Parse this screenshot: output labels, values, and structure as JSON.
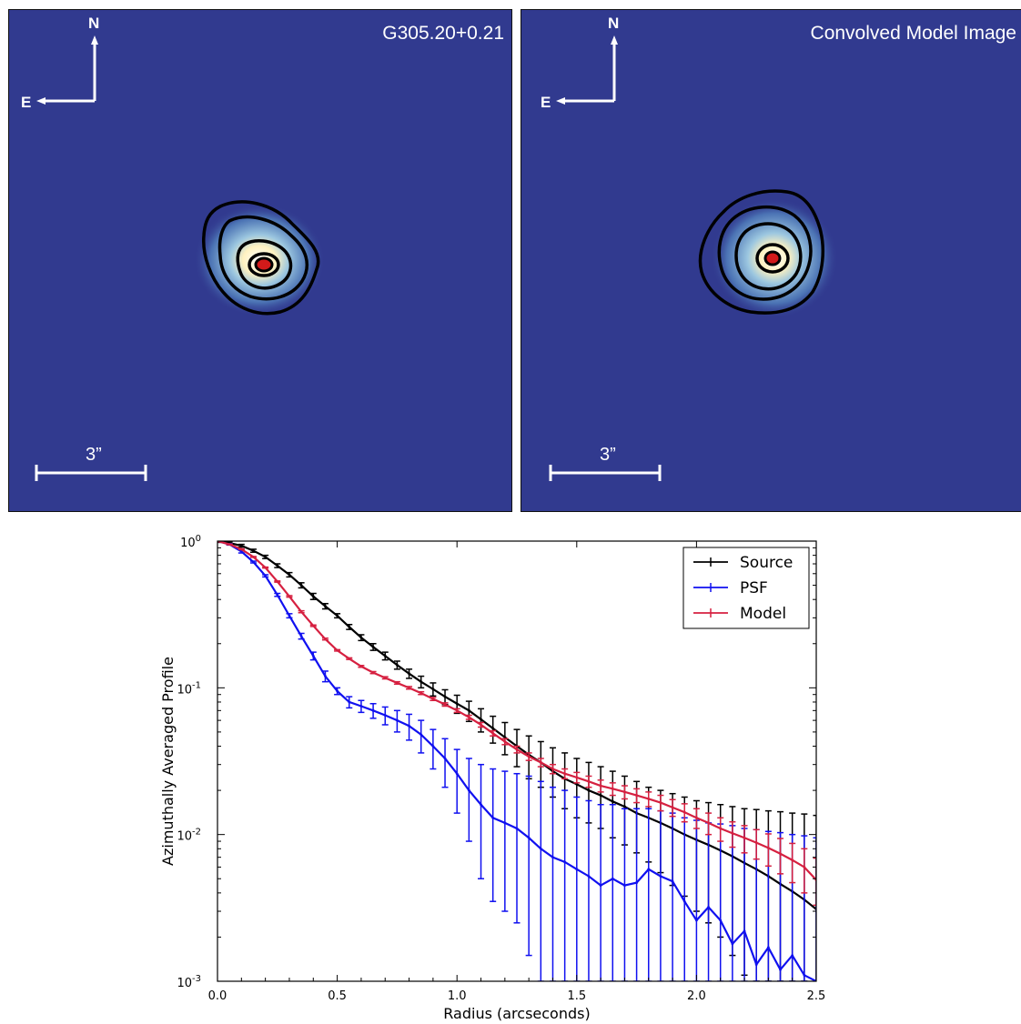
{
  "panels": [
    {
      "title": "G305.20+0.21",
      "north": "N",
      "east": "E",
      "scale": "3”",
      "blob_center": [
        -1.25,
        0.15
      ]
    },
    {
      "title": "Convolved Model Image",
      "north": "N",
      "east": "E",
      "scale": "3”",
      "blob_center": [
        -1.25,
        0.4
      ]
    }
  ],
  "colors": {
    "background": "#313a8f",
    "source": "#000000",
    "psf": "#1010f0",
    "model": "#d62040"
  },
  "chart_data": {
    "type": "line",
    "xlabel": "Radius (arcseconds)",
    "ylabel": "Azimuthally Averaged Profile",
    "xlim": [
      0.0,
      2.5
    ],
    "ylim": [
      0.001,
      1.0
    ],
    "yscale": "log",
    "xticks": [
      "0.0",
      "0.5",
      "1.0",
      "1.5",
      "2.0",
      "2.5"
    ],
    "yticks": [
      {
        "value": 1.0,
        "base": "10",
        "exp": "0"
      },
      {
        "value": 0.1,
        "base": "10",
        "exp": "-1"
      },
      {
        "value": 0.01,
        "base": "10",
        "exp": "-2"
      },
      {
        "value": 0.001,
        "base": "10",
        "exp": "-3"
      }
    ],
    "legend_position": "top-right",
    "x": [
      0.0,
      0.05,
      0.1,
      0.15,
      0.2,
      0.25,
      0.3,
      0.35,
      0.4,
      0.45,
      0.5,
      0.55,
      0.6,
      0.65,
      0.7,
      0.75,
      0.8,
      0.85,
      0.9,
      0.95,
      1.0,
      1.05,
      1.1,
      1.15,
      1.2,
      1.25,
      1.3,
      1.35,
      1.4,
      1.45,
      1.5,
      1.55,
      1.6,
      1.65,
      1.7,
      1.75,
      1.8,
      1.85,
      1.9,
      1.95,
      2.0,
      2.05,
      2.1,
      2.15,
      2.2,
      2.25,
      2.3,
      2.35,
      2.4,
      2.45,
      2.5
    ],
    "series": [
      {
        "name": "Source",
        "color": "#000000",
        "values": [
          1.0,
          0.97,
          0.93,
          0.86,
          0.78,
          0.68,
          0.59,
          0.5,
          0.42,
          0.36,
          0.31,
          0.26,
          0.22,
          0.19,
          0.165,
          0.143,
          0.125,
          0.11,
          0.098,
          0.087,
          0.078,
          0.07,
          0.061,
          0.053,
          0.046,
          0.04,
          0.035,
          0.031,
          0.027,
          0.024,
          0.022,
          0.02,
          0.0185,
          0.0168,
          0.0155,
          0.014,
          0.013,
          0.012,
          0.011,
          0.01,
          0.0092,
          0.0085,
          0.0078,
          0.0071,
          0.0064,
          0.0058,
          0.0052,
          0.0046,
          0.0041,
          0.0036,
          0.0031
        ],
        "err_upper": [
          1.02,
          0.99,
          0.95,
          0.88,
          0.8,
          0.7,
          0.61,
          0.52,
          0.44,
          0.375,
          0.32,
          0.27,
          0.23,
          0.2,
          0.175,
          0.152,
          0.134,
          0.12,
          0.108,
          0.097,
          0.089,
          0.081,
          0.072,
          0.064,
          0.058,
          0.052,
          0.047,
          0.043,
          0.039,
          0.036,
          0.033,
          0.031,
          0.029,
          0.027,
          0.025,
          0.023,
          0.021,
          0.02,
          0.019,
          0.018,
          0.017,
          0.0165,
          0.016,
          0.0155,
          0.015,
          0.0148,
          0.0145,
          0.0143,
          0.014,
          0.0138,
          0.0135
        ],
        "err_lower": [
          0.98,
          0.95,
          0.91,
          0.84,
          0.76,
          0.66,
          0.57,
          0.48,
          0.4,
          0.345,
          0.3,
          0.25,
          0.21,
          0.18,
          0.155,
          0.134,
          0.116,
          0.1,
          0.088,
          0.077,
          0.067,
          0.059,
          0.05,
          0.042,
          0.035,
          0.029,
          0.024,
          0.021,
          0.018,
          0.015,
          0.013,
          0.012,
          0.011,
          0.0095,
          0.0085,
          0.0075,
          0.0065,
          0.0055,
          0.0045,
          0.0038,
          0.003,
          0.0025,
          0.002,
          0.0015,
          0.0011,
          0.001,
          0.001,
          0.001,
          0.001,
          0.001,
          0.001
        ]
      },
      {
        "name": "PSF",
        "color": "#1010f0",
        "values": [
          1.0,
          0.95,
          0.85,
          0.72,
          0.58,
          0.43,
          0.31,
          0.225,
          0.165,
          0.12,
          0.095,
          0.08,
          0.075,
          0.07,
          0.065,
          0.06,
          0.055,
          0.048,
          0.04,
          0.033,
          0.026,
          0.02,
          0.016,
          0.013,
          0.012,
          0.011,
          0.0095,
          0.008,
          0.007,
          0.0065,
          0.0058,
          0.0052,
          0.0045,
          0.005,
          0.0045,
          0.0047,
          0.0058,
          0.0052,
          0.0048,
          0.0035,
          0.0026,
          0.0032,
          0.0026,
          0.0018,
          0.0022,
          0.0013,
          0.0017,
          0.0012,
          0.0015,
          0.0011,
          0.001
        ],
        "err_upper": [
          1.01,
          0.96,
          0.87,
          0.73,
          0.59,
          0.44,
          0.32,
          0.235,
          0.175,
          0.13,
          0.1,
          0.087,
          0.082,
          0.078,
          0.074,
          0.07,
          0.066,
          0.06,
          0.052,
          0.045,
          0.038,
          0.033,
          0.03,
          0.028,
          0.027,
          0.026,
          0.025,
          0.023,
          0.021,
          0.02,
          0.018,
          0.017,
          0.016,
          0.016,
          0.015,
          0.015,
          0.015,
          0.0145,
          0.014,
          0.013,
          0.0125,
          0.012,
          0.0118,
          0.0115,
          0.011,
          0.0108,
          0.0105,
          0.0103,
          0.01,
          0.0098,
          0.0095
        ],
        "err_lower": [
          0.99,
          0.94,
          0.83,
          0.71,
          0.57,
          0.42,
          0.3,
          0.215,
          0.155,
          0.11,
          0.09,
          0.073,
          0.068,
          0.062,
          0.056,
          0.05,
          0.044,
          0.036,
          0.028,
          0.021,
          0.014,
          0.009,
          0.005,
          0.0035,
          0.003,
          0.0025,
          0.0015,
          0.001,
          0.001,
          0.001,
          0.001,
          0.001,
          0.001,
          0.001,
          0.001,
          0.001,
          0.001,
          0.001,
          0.001,
          0.001,
          0.001,
          0.001,
          0.001,
          0.001,
          0.001,
          0.001,
          0.001,
          0.001,
          0.001,
          0.001,
          0.001
        ]
      },
      {
        "name": "Model",
        "color": "#d62040",
        "values": [
          1.0,
          0.95,
          0.88,
          0.78,
          0.66,
          0.53,
          0.42,
          0.33,
          0.265,
          0.215,
          0.18,
          0.158,
          0.14,
          0.127,
          0.117,
          0.108,
          0.1,
          0.092,
          0.084,
          0.077,
          0.07,
          0.063,
          0.056,
          0.049,
          0.043,
          0.038,
          0.034,
          0.031,
          0.028,
          0.026,
          0.0245,
          0.023,
          0.0215,
          0.0205,
          0.0195,
          0.0185,
          0.0175,
          0.0165,
          0.0153,
          0.0142,
          0.013,
          0.012,
          0.011,
          0.0102,
          0.0095,
          0.0088,
          0.0081,
          0.0074,
          0.0067,
          0.006,
          0.0049
        ],
        "err_upper": [
          1.005,
          0.955,
          0.885,
          0.785,
          0.665,
          0.535,
          0.425,
          0.335,
          0.268,
          0.218,
          0.182,
          0.16,
          0.142,
          0.129,
          0.119,
          0.11,
          0.102,
          0.094,
          0.086,
          0.079,
          0.072,
          0.065,
          0.058,
          0.051,
          0.045,
          0.04,
          0.036,
          0.033,
          0.03,
          0.028,
          0.0265,
          0.025,
          0.0235,
          0.0225,
          0.0215,
          0.0205,
          0.0195,
          0.0185,
          0.0173,
          0.0162,
          0.015,
          0.014,
          0.013,
          0.0122,
          0.0115,
          0.0108,
          0.0101,
          0.0094,
          0.0087,
          0.008,
          0.0069
        ],
        "err_lower": [
          0.995,
          0.945,
          0.875,
          0.775,
          0.655,
          0.525,
          0.415,
          0.325,
          0.262,
          0.212,
          0.178,
          0.156,
          0.138,
          0.125,
          0.115,
          0.106,
          0.098,
          0.09,
          0.082,
          0.075,
          0.068,
          0.061,
          0.054,
          0.047,
          0.041,
          0.036,
          0.032,
          0.029,
          0.026,
          0.024,
          0.0225,
          0.021,
          0.0195,
          0.0185,
          0.0175,
          0.0165,
          0.0155,
          0.0145,
          0.0133,
          0.0122,
          0.011,
          0.01,
          0.009,
          0.0082,
          0.0075,
          0.0068,
          0.0061,
          0.0054,
          0.0047,
          0.004,
          0.0033
        ]
      }
    ]
  }
}
